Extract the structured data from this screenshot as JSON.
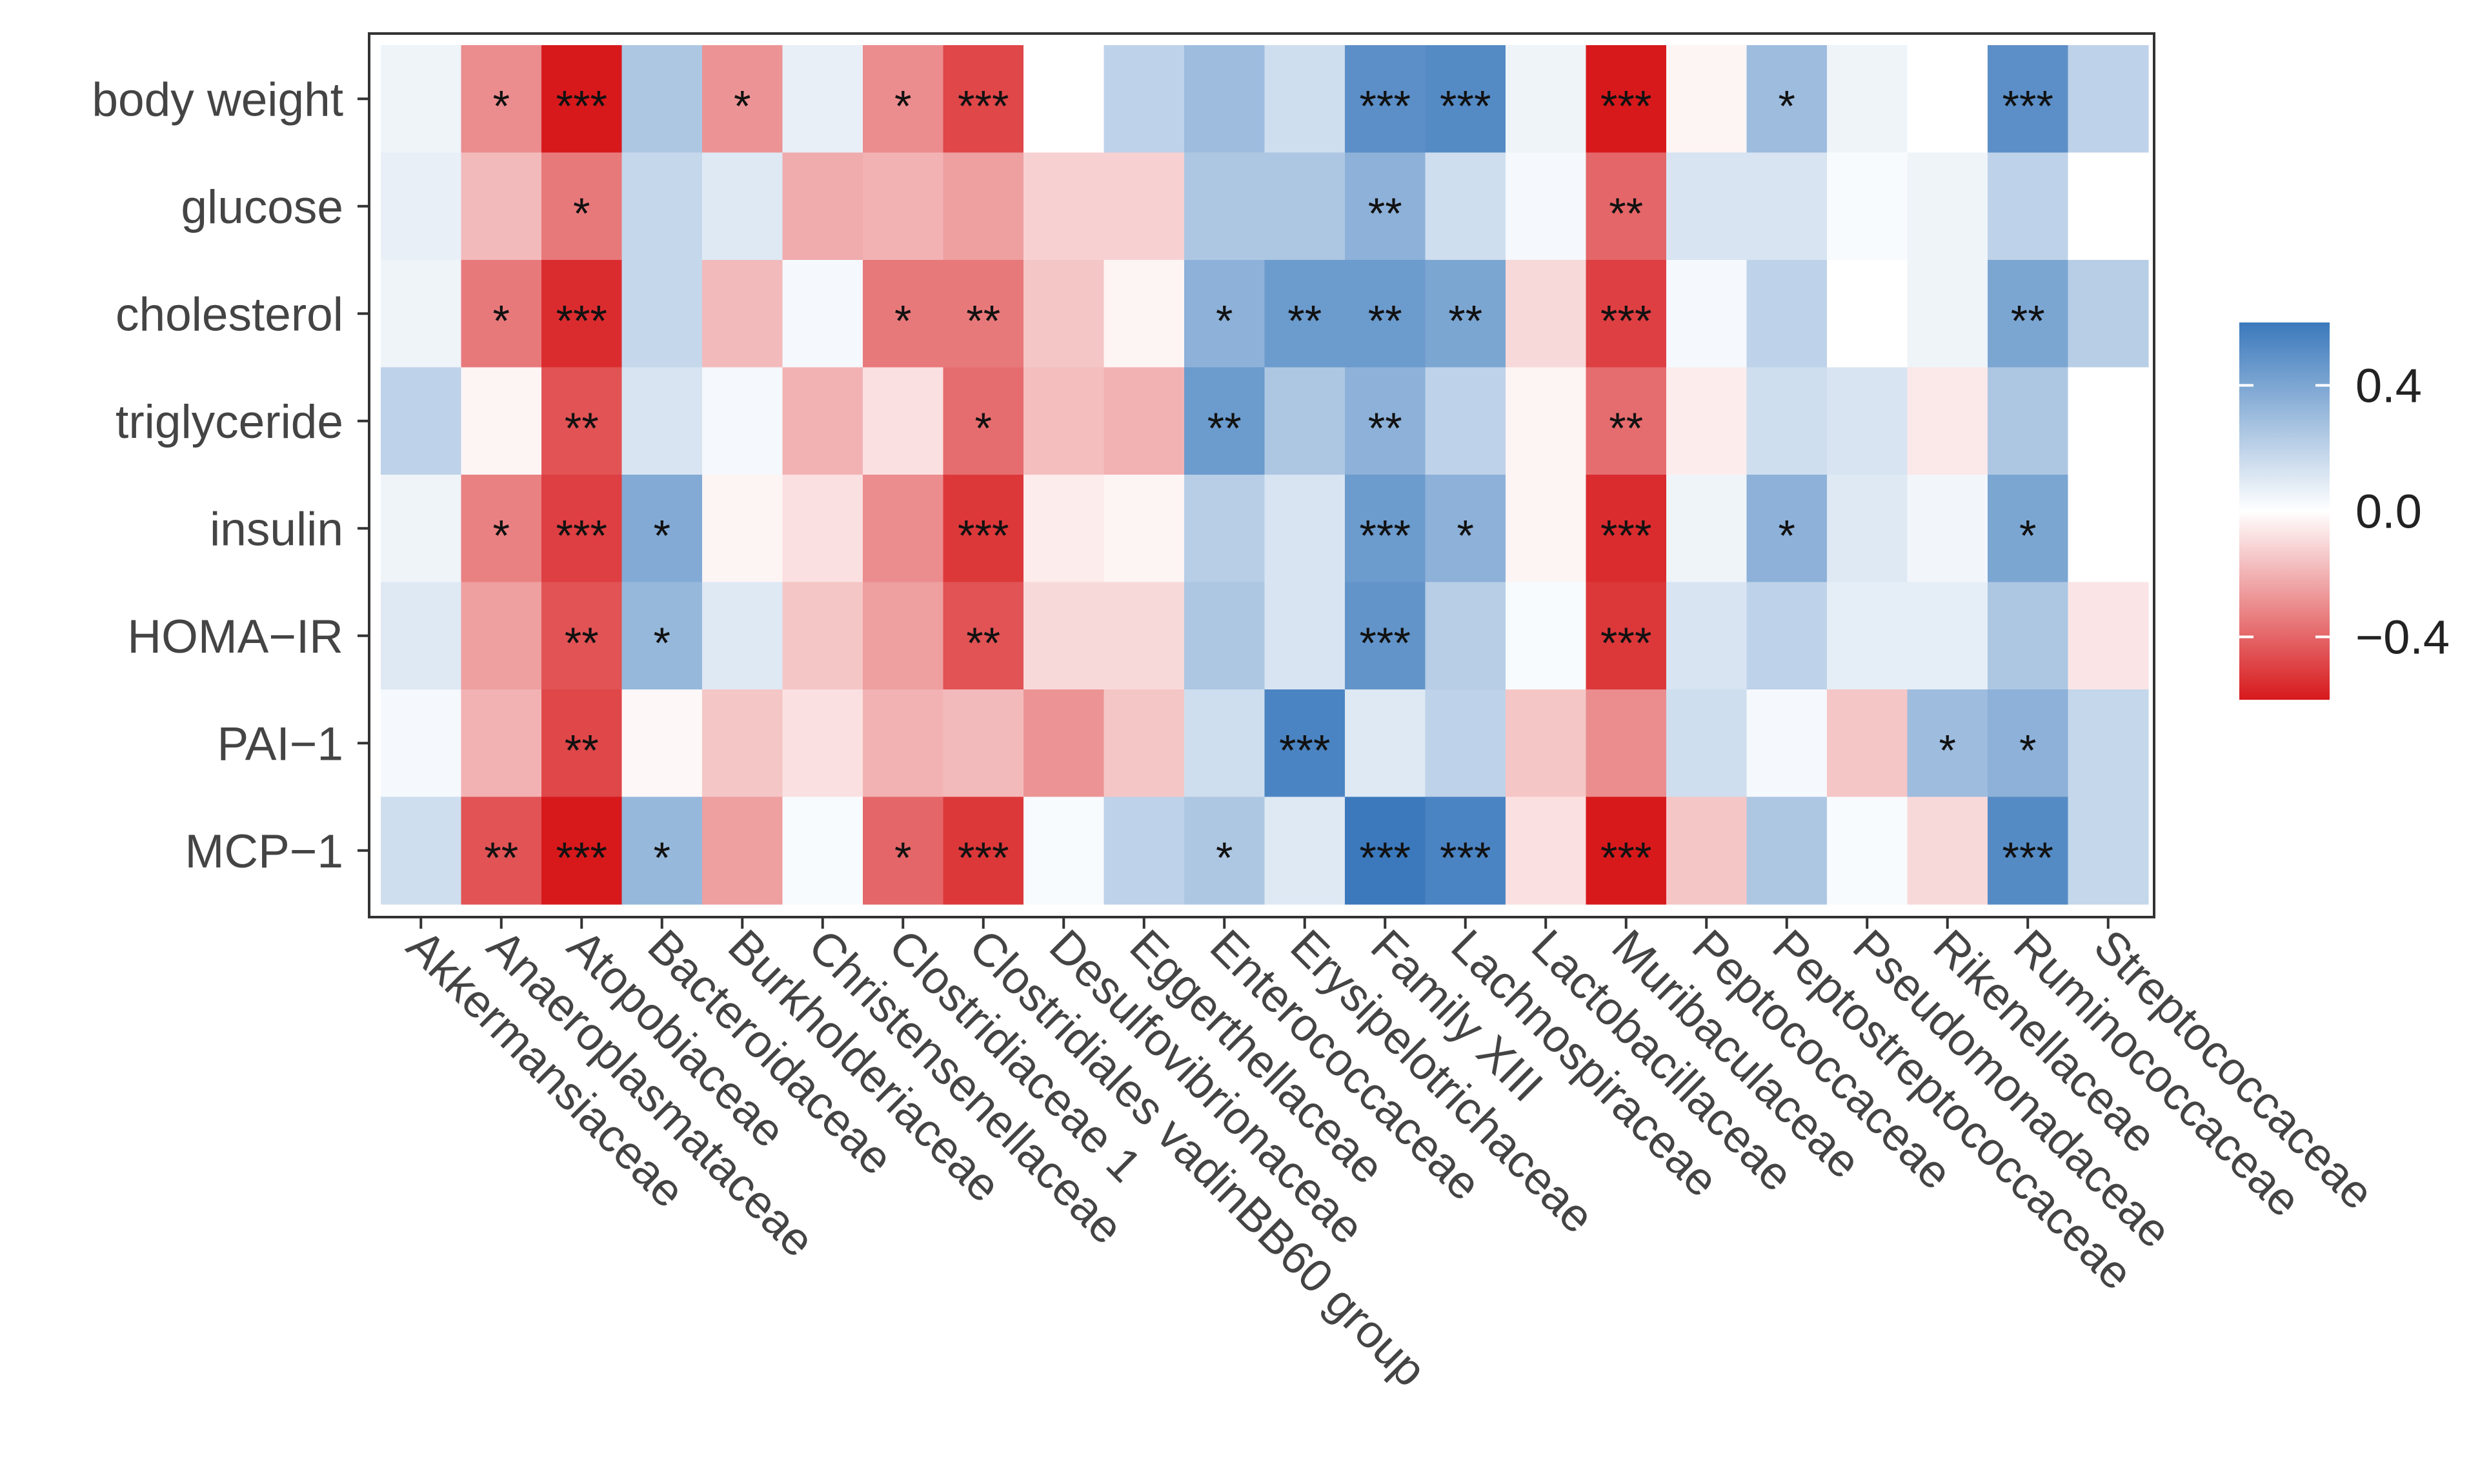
{
  "chart_data": {
    "type": "heatmap",
    "title": "",
    "xlabel": "",
    "ylabel": "",
    "rows": [
      "body weight",
      "glucose",
      "cholesterol",
      "triglyceride",
      "insulin",
      "HOMA−IR",
      "PAI−1",
      "MCP−1"
    ],
    "columns": [
      "Akkermansiaceae",
      "Anaeroplasmataceae",
      "Atopobiaceae",
      "Bacteroidaceae",
      "Burkholderiaceae",
      "Christensenellaceae",
      "Clostridiaceae 1",
      "Clostridiales vadinBB60 group",
      "Desulfovibrionaceae",
      "Eggerthellaceae",
      "Enterococcaceae",
      "Erysipelotrichaceae",
      "Family XIII",
      "Lachnospiraceae",
      "Lactobacillaceae",
      "Muribaculaceae",
      "Peptococcaceae",
      "Peptostreptococcaceae",
      "Pseudomonadaceae",
      "Rikenellaceae",
      "Ruminococcaceae",
      "Streptococcaceae"
    ],
    "values": [
      [
        0.05,
        -0.3,
        -0.65,
        0.25,
        -0.28,
        0.07,
        -0.3,
        -0.48,
        0.0,
        0.2,
        0.3,
        0.15,
        0.5,
        0.52,
        0.05,
        -0.68,
        -0.03,
        0.3,
        0.05,
        0.0,
        0.5,
        0.2
      ],
      [
        0.07,
        -0.18,
        -0.35,
        0.18,
        0.1,
        -0.22,
        -0.2,
        -0.25,
        -0.12,
        -0.12,
        0.25,
        0.25,
        0.35,
        0.15,
        0.03,
        -0.4,
        0.12,
        0.12,
        0.02,
        0.05,
        0.2,
        0.0
      ],
      [
        0.05,
        -0.35,
        -0.55,
        0.18,
        -0.18,
        0.03,
        -0.35,
        -0.35,
        -0.15,
        -0.03,
        0.35,
        0.45,
        0.45,
        0.4,
        -0.1,
        -0.5,
        0.03,
        0.2,
        0.0,
        0.05,
        0.4,
        0.22
      ],
      [
        0.2,
        -0.03,
        -0.45,
        0.12,
        0.03,
        -0.2,
        -0.08,
        -0.38,
        -0.17,
        -0.2,
        0.45,
        0.25,
        0.35,
        0.2,
        -0.03,
        -0.38,
        -0.05,
        0.15,
        0.12,
        -0.06,
        0.25,
        0.0
      ],
      [
        0.05,
        -0.33,
        -0.5,
        0.38,
        -0.03,
        -0.08,
        -0.3,
        -0.52,
        -0.05,
        -0.03,
        0.22,
        0.12,
        0.45,
        0.35,
        -0.03,
        -0.55,
        0.05,
        0.35,
        0.1,
        0.04,
        0.4,
        0.0
      ],
      [
        0.1,
        -0.25,
        -0.45,
        0.32,
        0.1,
        -0.15,
        -0.25,
        -0.45,
        -0.1,
        -0.1,
        0.25,
        0.12,
        0.48,
        0.22,
        0.02,
        -0.52,
        0.12,
        0.2,
        0.08,
        0.08,
        0.25,
        -0.07
      ],
      [
        0.03,
        -0.2,
        -0.48,
        -0.02,
        -0.15,
        -0.08,
        -0.2,
        -0.18,
        -0.28,
        -0.15,
        0.15,
        0.55,
        0.1,
        0.2,
        -0.15,
        -0.3,
        0.15,
        0.03,
        -0.15,
        0.3,
        0.35,
        0.18
      ],
      [
        0.15,
        -0.45,
        -0.6,
        0.32,
        -0.25,
        0.02,
        -0.4,
        -0.52,
        0.02,
        0.2,
        0.25,
        0.1,
        0.7,
        0.55,
        -0.08,
        -0.62,
        -0.15,
        0.25,
        0.02,
        -0.1,
        0.52,
        0.18
      ]
    ],
    "stars": [
      [
        "",
        "*",
        "***",
        "",
        "*",
        "",
        "*",
        "***",
        "",
        "",
        "",
        "",
        "***",
        "***",
        "",
        "***",
        "",
        "*",
        "",
        "",
        "***",
        ""
      ],
      [
        "",
        "",
        "*",
        "",
        "",
        "",
        "",
        "",
        "",
        "",
        "",
        "",
        "**",
        "",
        "",
        "**",
        "",
        "",
        "",
        "",
        "",
        ""
      ],
      [
        "",
        "*",
        "***",
        "",
        "",
        "",
        "*",
        "**",
        "",
        "",
        "*",
        "**",
        "**",
        "**",
        "",
        "***",
        "",
        "",
        "",
        "",
        "**",
        ""
      ],
      [
        "",
        "",
        "**",
        "",
        "",
        "",
        "",
        "*",
        "",
        "",
        "**",
        "",
        "**",
        "",
        "",
        "**",
        "",
        "",
        "",
        "",
        "",
        ""
      ],
      [
        "",
        "*",
        "***",
        "*",
        "",
        "",
        "",
        "***",
        "",
        "",
        "",
        "",
        "***",
        "*",
        "",
        "***",
        "",
        "*",
        "",
        "",
        "*",
        ""
      ],
      [
        "",
        "",
        "**",
        "*",
        "",
        "",
        "",
        "**",
        "",
        "",
        "",
        "",
        "***",
        "",
        "",
        "***",
        "",
        "",
        "",
        "",
        "",
        ""
      ],
      [
        "",
        "",
        "**",
        "",
        "",
        "",
        "",
        "",
        "",
        "",
        "",
        "***",
        "",
        "",
        "",
        "",
        "",
        "",
        "",
        "*",
        "*",
        ""
      ],
      [
        "",
        "**",
        "***",
        "*",
        "",
        "",
        "*",
        "***",
        "",
        "",
        "*",
        "",
        "***",
        "***",
        "",
        "***",
        "",
        "",
        "",
        "",
        "***",
        ""
      ]
    ],
    "color_scale": {
      "range": [
        -0.6,
        0.6
      ],
      "low_color": "#d7191c",
      "mid_color": "#ffffff",
      "high_color": "#3b79bc",
      "ticks": [
        0.4,
        0.0,
        -0.4
      ],
      "tick_labels": [
        "0.4",
        "0.0",
        "−0.4"
      ]
    },
    "legend": "right"
  }
}
